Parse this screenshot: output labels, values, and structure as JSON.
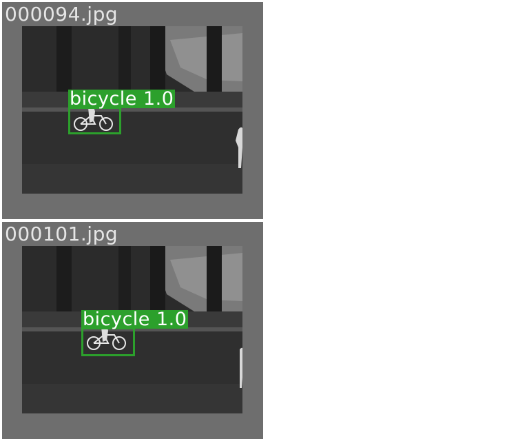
{
  "images": [
    {
      "filename": "000094.jpg",
      "detections": [
        {
          "class": "bicycle",
          "confidence": "1.0",
          "label": "bicycle  1.0"
        }
      ]
    },
    {
      "filename": "000101.jpg",
      "detections": [
        {
          "class": "bicycle",
          "confidence": "1.0",
          "label": "bicycle  1.0"
        }
      ]
    }
  ],
  "colors": {
    "box": "#2ca02c",
    "panel": "#6e6e6e",
    "text": "#e6e6e6"
  }
}
